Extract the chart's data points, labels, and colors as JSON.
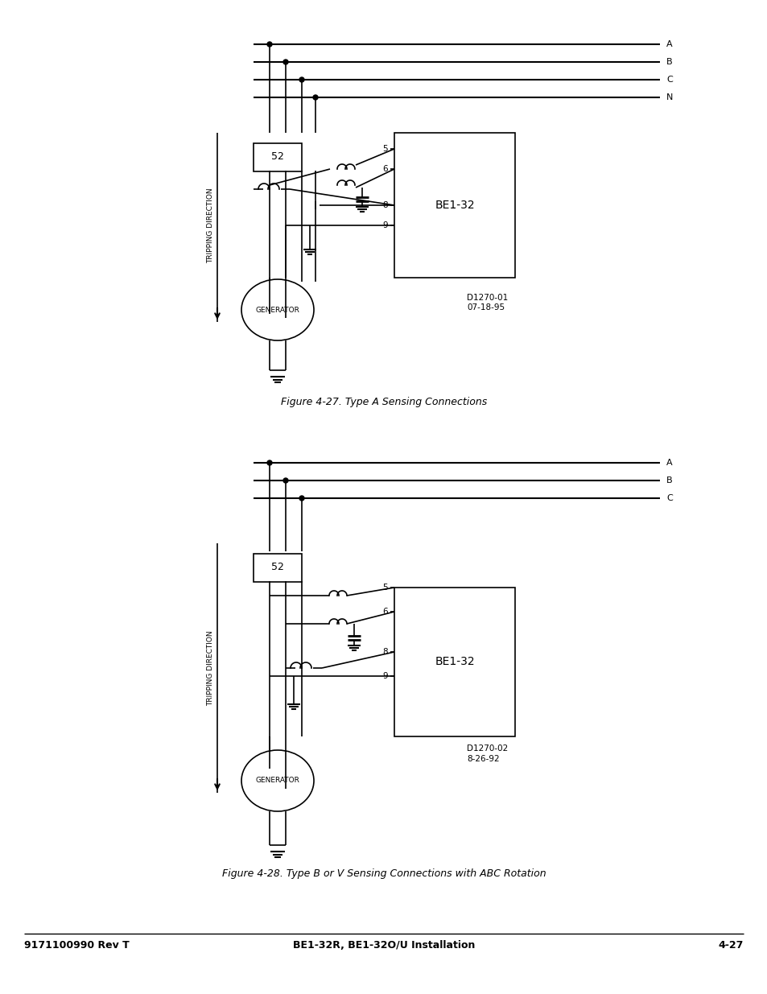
{
  "fig_width": 9.54,
  "fig_height": 12.35,
  "bg_color": "#ffffff",
  "line_color": "#000000",
  "fig1_caption": "Figure 4-27. Type A Sensing Connections",
  "fig2_caption": "Figure 4-28. Type B or V Sensing Connections with ABC Rotation",
  "footer_left": "9171100990 Rev T",
  "footer_center": "BE1-32R, BE1-32O/U Installation",
  "footer_right": "4-27"
}
